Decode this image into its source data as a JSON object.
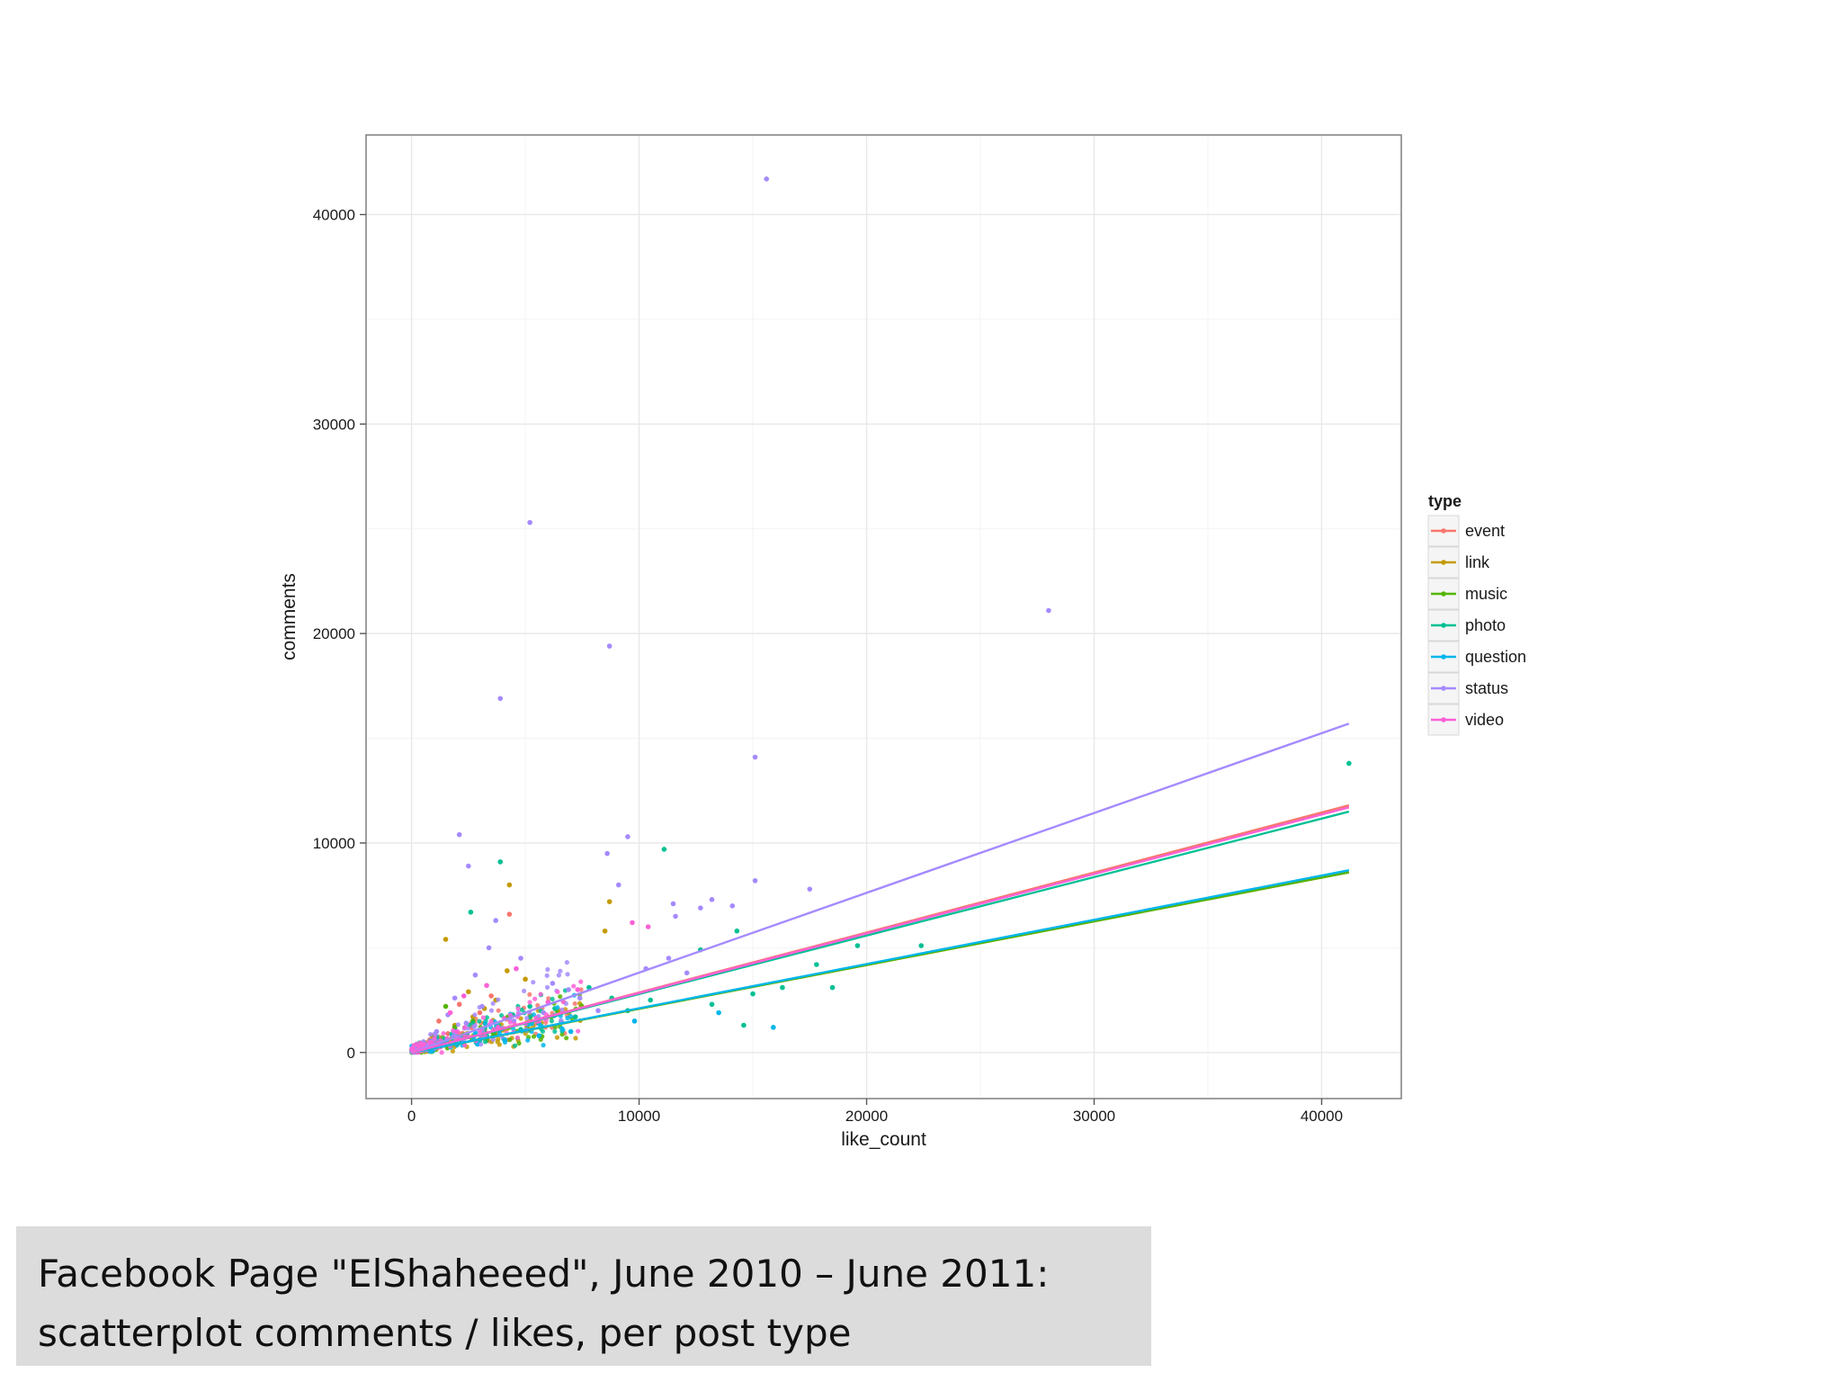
{
  "caption": {
    "line1": "Facebook Page \"ElShaheeed\", June 2010 – June 2011:",
    "line2": "scatterplot comments / likes, per post type"
  },
  "chart_data": {
    "type": "scatter",
    "xlabel": "like_count",
    "ylabel": "comments",
    "xlim": [
      -2000,
      43500
    ],
    "ylim": [
      -2200,
      43800
    ],
    "x_ticks": [
      0,
      10000,
      20000,
      30000,
      40000
    ],
    "y_ticks": [
      0,
      10000,
      20000,
      30000,
      40000
    ],
    "x_tick_labels": [
      "0",
      "10000",
      "20000",
      "30000",
      "40000"
    ],
    "y_tick_labels": [
      "0",
      "10000",
      "20000",
      "30000",
      "40000"
    ],
    "grid": true,
    "legend": {
      "title": "type",
      "placement": "right"
    },
    "series": [
      {
        "name": "event",
        "color": "#F8766D",
        "fit": {
          "x": [
            0,
            41200
          ],
          "y": [
            0,
            11800
          ]
        },
        "points": [
          [
            1200,
            1500
          ],
          [
            2100,
            2300
          ],
          [
            3000,
            1900
          ],
          [
            4300,
            6600
          ],
          [
            5200,
            1800
          ],
          [
            6500,
            2000
          ],
          [
            1600,
            900
          ],
          [
            2600,
            1200
          ],
          [
            800,
            600
          ],
          [
            3500,
            2700
          ]
        ]
      },
      {
        "name": "link",
        "color": "#C49A00",
        "fit": {
          "x": [
            0,
            41200
          ],
          "y": [
            0,
            8600
          ]
        },
        "points": [
          [
            1500,
            5400
          ],
          [
            4300,
            8000
          ],
          [
            2500,
            2900
          ],
          [
            8700,
            7200
          ],
          [
            8500,
            5800
          ],
          [
            3200,
            2100
          ],
          [
            1900,
            1300
          ],
          [
            900,
            800
          ],
          [
            5000,
            3500
          ],
          [
            4200,
            3900
          ],
          [
            6000,
            2400
          ],
          [
            2700,
            1700
          ],
          [
            3700,
            2500
          ]
        ]
      },
      {
        "name": "music",
        "color": "#53B400",
        "fit": {
          "x": [
            0,
            41200
          ],
          "y": [
            0,
            8600
          ]
        },
        "points": [
          [
            1000,
            700
          ],
          [
            1900,
            1200
          ],
          [
            2700,
            1500
          ],
          [
            3600,
            900
          ],
          [
            1500,
            2200
          ],
          [
            2300,
            800
          ]
        ]
      },
      {
        "name": "photo",
        "color": "#00C094",
        "fit": {
          "x": [
            0,
            41200
          ],
          "y": [
            0,
            11500
          ]
        },
        "points": [
          [
            41200,
            13800
          ],
          [
            11100,
            9700
          ],
          [
            3900,
            9100
          ],
          [
            2600,
            6700
          ],
          [
            19600,
            5100
          ],
          [
            22400,
            5100
          ],
          [
            18500,
            3100
          ],
          [
            17800,
            4200
          ],
          [
            16300,
            3100
          ],
          [
            15000,
            2800
          ],
          [
            14600,
            1300
          ],
          [
            14300,
            5800
          ],
          [
            12700,
            4900
          ],
          [
            10500,
            2500
          ],
          [
            9500,
            2000
          ],
          [
            8800,
            2600
          ],
          [
            7200,
            1700
          ],
          [
            6300,
            2100
          ],
          [
            5600,
            1400
          ],
          [
            4800,
            1100
          ],
          [
            3300,
            800
          ],
          [
            2200,
            500
          ],
          [
            1300,
            300
          ],
          [
            5200,
            2200
          ],
          [
            7800,
            3100
          ],
          [
            13200,
            2300
          ]
        ]
      },
      {
        "name": "question",
        "color": "#00B6EB",
        "fit": {
          "x": [
            0,
            41200
          ],
          "y": [
            0,
            8700
          ]
        },
        "points": [
          [
            15900,
            1200
          ],
          [
            13500,
            1900
          ],
          [
            9800,
            1500
          ],
          [
            7000,
            1000
          ],
          [
            5600,
            800
          ],
          [
            4100,
            600
          ],
          [
            2900,
            400
          ]
        ]
      },
      {
        "name": "status",
        "color": "#A58AFF",
        "fit": {
          "x": [
            0,
            41200
          ],
          "y": [
            0,
            15700
          ]
        },
        "points": [
          [
            15600,
            41700
          ],
          [
            5200,
            25300
          ],
          [
            28000,
            21100
          ],
          [
            8700,
            19400
          ],
          [
            3900,
            16900
          ],
          [
            15100,
            14100
          ],
          [
            2100,
            10400
          ],
          [
            9500,
            10300
          ],
          [
            8600,
            9500
          ],
          [
            2500,
            8900
          ],
          [
            15100,
            8200
          ],
          [
            9100,
            8000
          ],
          [
            17500,
            7800
          ],
          [
            13200,
            7300
          ],
          [
            11500,
            7100
          ],
          [
            14100,
            7000
          ],
          [
            12700,
            6900
          ],
          [
            11600,
            6500
          ],
          [
            3700,
            6300
          ],
          [
            4800,
            4500
          ],
          [
            10300,
            4000
          ],
          [
            6900,
            3000
          ],
          [
            2800,
            3700
          ],
          [
            1900,
            2600
          ],
          [
            3100,
            2200
          ],
          [
            6200,
            3300
          ],
          [
            7400,
            2600
          ],
          [
            12100,
            3800
          ],
          [
            1600,
            1800
          ],
          [
            2400,
            1400
          ],
          [
            4500,
            1500
          ],
          [
            5800,
            1900
          ],
          [
            8200,
            2000
          ],
          [
            11300,
            4500
          ],
          [
            3400,
            5000
          ],
          [
            1100,
            1000
          ]
        ]
      },
      {
        "name": "video",
        "color": "#FB61D7",
        "fit": {
          "x": [
            0,
            41200
          ],
          "y": [
            0,
            11700
          ]
        },
        "points": [
          [
            10400,
            6000
          ],
          [
            4600,
            4000
          ],
          [
            3300,
            3200
          ],
          [
            2300,
            2700
          ],
          [
            1700,
            1900
          ],
          [
            6000,
            2400
          ],
          [
            3800,
            1200
          ],
          [
            7300,
            3000
          ],
          [
            9700,
            6200
          ],
          [
            2000,
            1000
          ]
        ]
      }
    ]
  }
}
